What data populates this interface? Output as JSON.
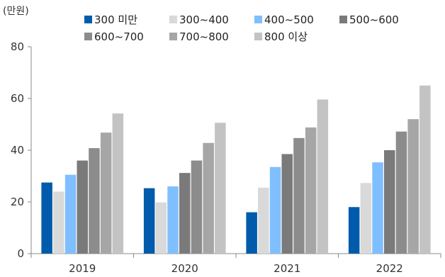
{
  "chart_data": {
    "type": "bar",
    "unit_label": "(만원)",
    "categories": [
      "2019",
      "2020",
      "2021",
      "2022"
    ],
    "series": [
      {
        "name": "300 미만",
        "color": "#005BAC",
        "values": [
          27.5,
          25.3,
          16.0,
          18.0
        ]
      },
      {
        "name": "300~400",
        "color": "#D9D9D9",
        "values": [
          24.0,
          19.8,
          25.5,
          27.3
        ]
      },
      {
        "name": "400~500",
        "color": "#7FBFFF",
        "values": [
          30.5,
          26.0,
          33.5,
          35.3
        ]
      },
      {
        "name": "500~600",
        "color": "#7A7A7A",
        "values": [
          36.0,
          31.2,
          38.5,
          40.0
        ]
      },
      {
        "name": "600~700",
        "color": "#8C8C8C",
        "values": [
          40.8,
          36.0,
          44.7,
          47.2
        ]
      },
      {
        "name": "700~800",
        "color": "#A6A6A6",
        "values": [
          46.8,
          42.8,
          48.8,
          52.0
        ]
      },
      {
        "name": "800 이상",
        "color": "#C3C3C3",
        "values": [
          54.2,
          50.6,
          59.6,
          65.0
        ]
      }
    ],
    "ylim": [
      0,
      80
    ],
    "yticks": [
      0,
      20,
      40,
      60,
      80
    ],
    "grid": false,
    "legend_position": "top"
  }
}
